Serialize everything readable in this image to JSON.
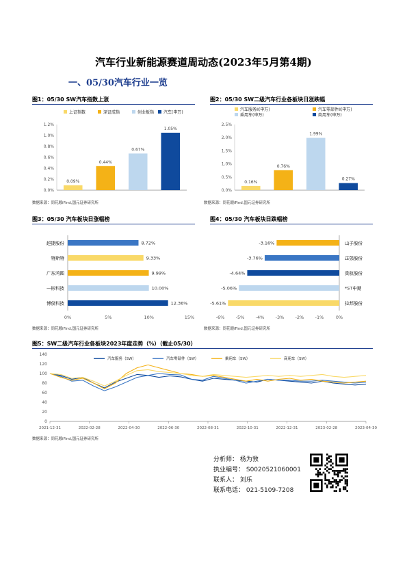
{
  "title": "汽车行业新能源赛道周动态(2023年5月第4期)",
  "section": "一、05/30汽车行业一览",
  "source": "数据来源：同花顺iFind,国元证券研究所",
  "colors": {
    "c1": "#f9d968",
    "c2": "#f4b217",
    "c3": "#bdd7ee",
    "c4": "#0f4a9d",
    "c5": "#3a76c4",
    "accent": "#1f3f8f"
  },
  "fig1": {
    "title": "图1：05/30 SW汽车指数上涨",
    "chart_data": {
      "type": "bar",
      "categories": [
        "上证指数",
        "深证成指",
        "创业板指",
        "汽车(申万)"
      ],
      "values": [
        0.09,
        0.44,
        0.67,
        1.05
      ],
      "value_labels": [
        "0.09%",
        "0.44%",
        "0.67%",
        "1.05%"
      ],
      "ylim": [
        0,
        1.2
      ],
      "yticks": [
        "0.0%",
        "0.2%",
        "0.4%",
        "0.6%",
        "0.8%",
        "1.0%",
        "1.2%"
      ],
      "legend": [
        "上证指数",
        "深证成指",
        "创业板指",
        "汽车(申万)"
      ]
    }
  },
  "fig2": {
    "title": "图2：05/30 SW二级汽车行业各板块日涨跌幅",
    "chart_data": {
      "type": "bar",
      "categories": [
        "汽车服务Ⅱ(申万)",
        "汽车零部件Ⅱ(申万)",
        "乘用车(申万)",
        "商用车(申万)"
      ],
      "values": [
        0.16,
        0.76,
        1.99,
        0.27
      ],
      "value_labels": [
        "0.16%",
        "0.76%",
        "1.99%",
        "0.27%"
      ],
      "ylim": [
        0,
        2.5
      ],
      "yticks": [
        "0.0%",
        "0.5%",
        "1.0%",
        "1.5%",
        "2.0%",
        "2.5%"
      ],
      "legend": [
        "汽车服务Ⅱ(申万)",
        "汽车零部件Ⅱ(申万)",
        "乘用车(申万)",
        "商用车(申万)"
      ]
    }
  },
  "fig3": {
    "title": "图3：05/30 汽车板块日涨幅榜",
    "chart_data": {
      "type": "bar",
      "categories": [
        "超捷股份",
        "特斯特",
        "广东鸿图",
        "一彬科技",
        "博俊科技"
      ],
      "values": [
        8.72,
        9.33,
        9.99,
        10.0,
        12.36
      ],
      "value_labels": [
        "8.72%",
        "9.33%",
        "9.99%",
        "10.00%",
        "12.36%"
      ],
      "xlim": [
        0,
        15
      ],
      "xticks": [
        "0%",
        "5%",
        "10%",
        "15%"
      ]
    }
  },
  "fig4": {
    "title": "图4：05/30 汽车板块日跌幅榜",
    "chart_data": {
      "type": "bar",
      "categories": [
        "山子股份",
        "正强股份",
        "贵航股份",
        "*ST中期",
        "拉邦股份"
      ],
      "values": [
        -3.16,
        -3.76,
        -4.64,
        -5.06,
        -5.61
      ],
      "value_labels": [
        "-3.16%",
        "-3.76%",
        "-4.64%",
        "-5.06%",
        "-5.61%"
      ],
      "xlim": [
        -6,
        0
      ],
      "xticks": [
        "-6%",
        "-5%",
        "-4%",
        "-3%",
        "-2%",
        "-1%",
        "0%"
      ]
    }
  },
  "fig5": {
    "title": "图5：SW二级汽车行业各板块2023年度走势（%）（截止05/30）",
    "chart_data": {
      "type": "line",
      "x_ticks": [
        "2021-12-31",
        "2022-02-28",
        "2022-04-30",
        "2022-06-30",
        "2022-08-31",
        "2022-10-31",
        "2022-12-31",
        "2023-02-28",
        "2023-04-30"
      ],
      "ylim": [
        0,
        140
      ],
      "yticks": [
        "0",
        "20",
        "40",
        "60",
        "80",
        "100",
        "120",
        "140"
      ],
      "series": [
        {
          "name": "汽车服务（SW）",
          "values": [
            100,
            96,
            88,
            92,
            80,
            70,
            82,
            90,
            98,
            96,
            92,
            95,
            93,
            88,
            84,
            90,
            88,
            86,
            84,
            82,
            88,
            86,
            84,
            82,
            80,
            84,
            80,
            78,
            76,
            78
          ]
        },
        {
          "name": "汽车零部件（SW）",
          "values": [
            100,
            94,
            84,
            86,
            74,
            64,
            72,
            82,
            92,
            96,
            100,
            98,
            97,
            88,
            86,
            94,
            90,
            86,
            80,
            84,
            88,
            86,
            86,
            84,
            84,
            86,
            84,
            82,
            80,
            82
          ]
        },
        {
          "name": "乘用车（SW）",
          "values": [
            100,
            92,
            86,
            90,
            80,
            68,
            80,
            100,
            112,
            118,
            112,
            106,
            100,
            98,
            94,
            96,
            92,
            88,
            84,
            88,
            84,
            88,
            90,
            86,
            88,
            84,
            82,
            80,
            82,
            84
          ]
        },
        {
          "name": "商用车（SW）",
          "values": [
            100,
            98,
            90,
            92,
            84,
            74,
            84,
            96,
            106,
            108,
            104,
            102,
            100,
            96,
            94,
            98,
            96,
            94,
            92,
            94,
            96,
            94,
            96,
            94,
            96,
            98,
            94,
            92,
            94,
            96
          ]
        }
      ]
    }
  },
  "analyst": {
    "name": "分析师：   杨为敩",
    "license": "执业编号：  S0020521060001",
    "contact": "联系人：   刘乐",
    "phone": "联系电话：  021-5109-7208"
  }
}
